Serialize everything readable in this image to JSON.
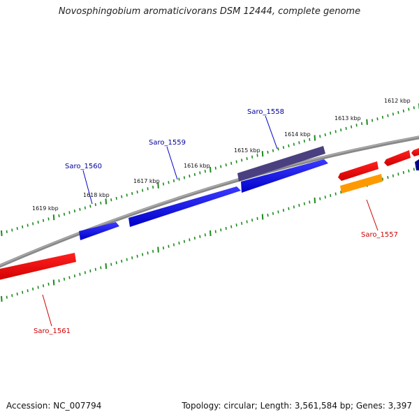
{
  "title": "Novosphingobium aromaticivorans DSM 12444, complete genome",
  "footer": {
    "accession": "Accession: NC_007794",
    "summary": "Topology: circular; Length: 3,561,584 bp; Genes: 3,397"
  },
  "ticks": [
    {
      "label": "1612 kbp",
      "kbp": 1612
    },
    {
      "label": "1613 kbp",
      "kbp": 1613
    },
    {
      "label": "1614 kbp",
      "kbp": 1614
    },
    {
      "label": "1615 kbp",
      "kbp": 1615
    },
    {
      "label": "1616 kbp",
      "kbp": 1616
    },
    {
      "label": "1617 kbp",
      "kbp": 1617
    },
    {
      "label": "1618 kbp",
      "kbp": 1618
    },
    {
      "label": "1619 kbp",
      "kbp": 1619
    }
  ],
  "genes": [
    {
      "name": "Saro_1557",
      "color": "#cc0000",
      "strand": "reverse-label"
    },
    {
      "name": "Saro_1558",
      "color": "#000099",
      "strand": "forward"
    },
    {
      "name": "Saro_1559",
      "color": "#000099",
      "strand": "forward"
    },
    {
      "name": "Saro_1560",
      "color": "#000099",
      "strand": "forward"
    },
    {
      "name": "Saro_1561",
      "color": "#cc0000",
      "strand": "reverse"
    }
  ],
  "colors": {
    "forward_gene": "#0000ee",
    "reverse_gene": "#ee0000",
    "orange_feature": "#ff9900",
    "purple_feature": "#4a4080",
    "backbone": "#888888",
    "ticks": "#1a8a1a"
  }
}
